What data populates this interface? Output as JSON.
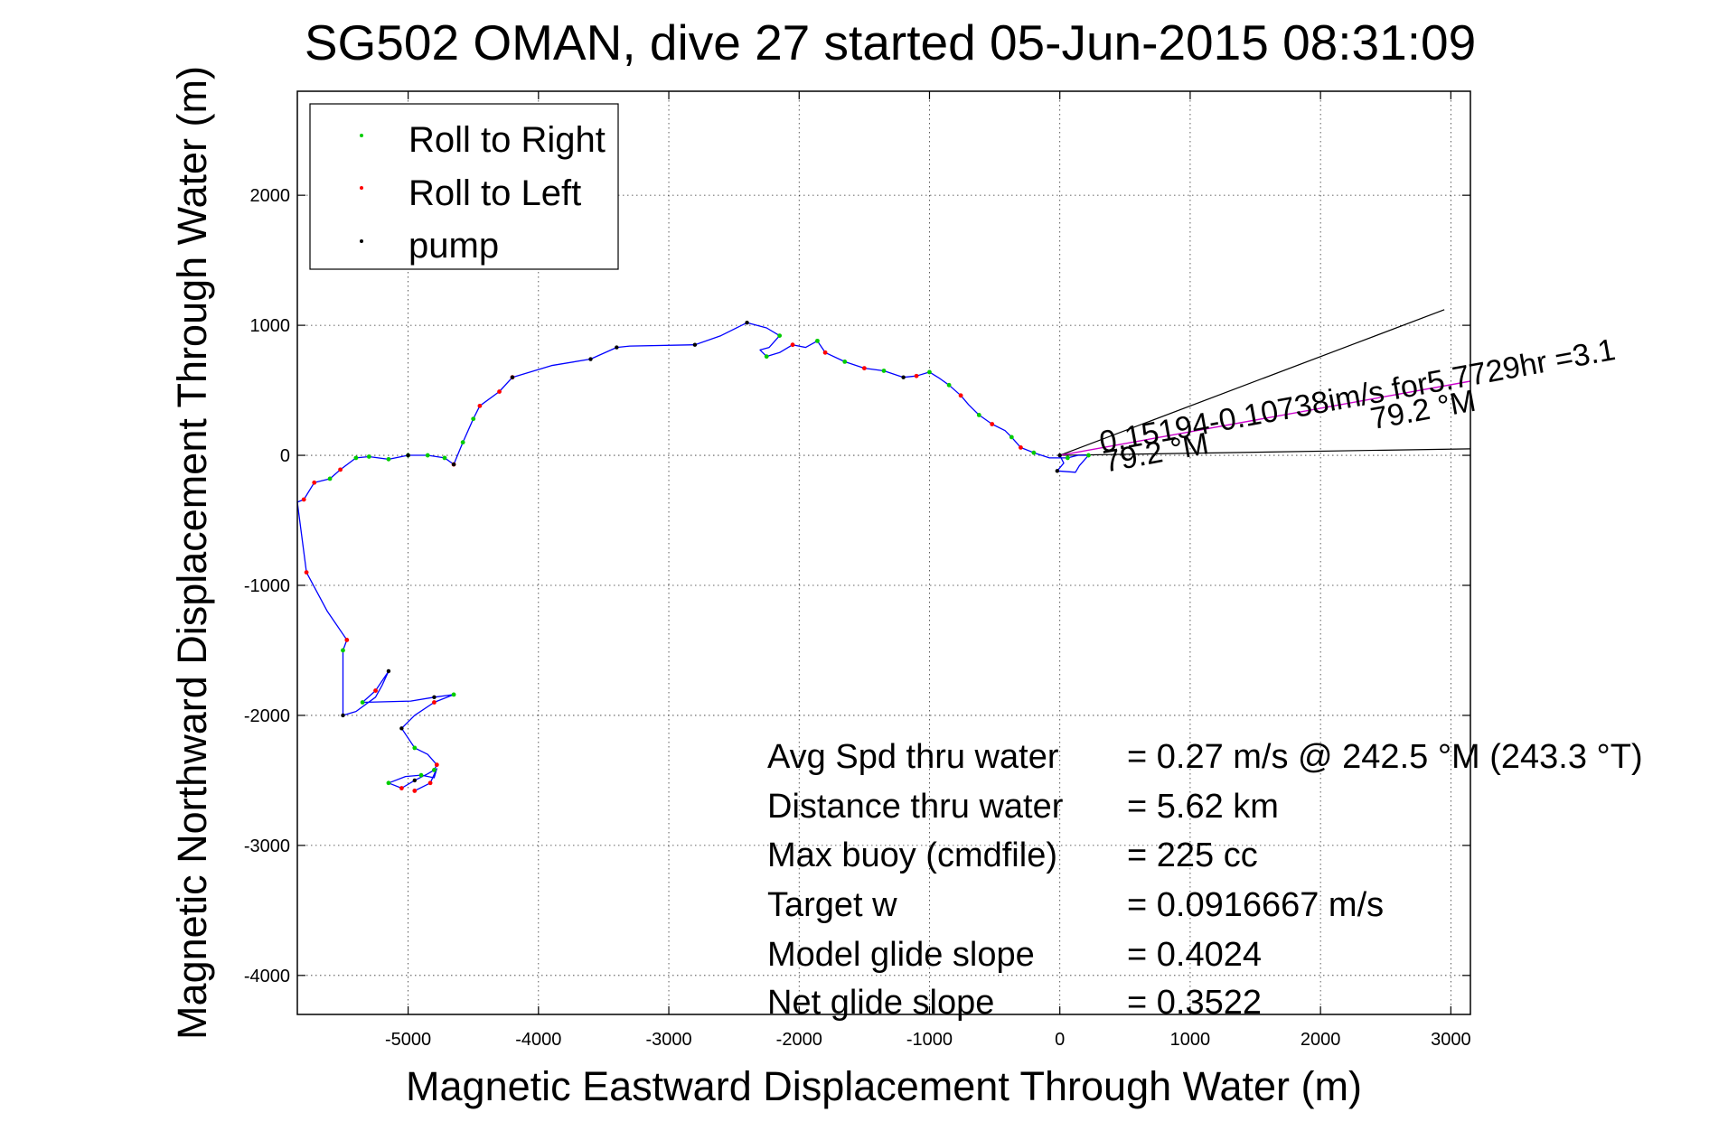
{
  "chart_data": {
    "type": "scatter",
    "title": "SG502 OMAN, dive 27 started 05-Jun-2015 08:31:09",
    "xlabel": "Magnetic Eastward Displacement Through Water (m)",
    "ylabel": "Magnetic Northward Displacement Through Water (m)",
    "xlim": [
      -5850,
      3150
    ],
    "ylim": [
      -4300,
      2800
    ],
    "xticks": [
      -5000,
      -4000,
      -3000,
      -2000,
      -1000,
      0,
      1000,
      2000,
      3000
    ],
    "xtick_labels": [
      "-5000",
      "-4000",
      "-3000",
      "-2000",
      "-1000",
      "0",
      "1000",
      "2000",
      "3000"
    ],
    "yticks": [
      -4000,
      -3000,
      -2000,
      -1000,
      0,
      1000,
      2000
    ],
    "ytick_labels": [
      "-4000",
      "-3000",
      "-2000",
      "-1000",
      "0",
      "1000",
      "2000"
    ],
    "grid": true,
    "legend_position": "top-left",
    "colors": {
      "track": "#0000ff",
      "roll_right": "#00cc00",
      "roll_left": "#ff0000",
      "pump": "#000000",
      "current_line": "#cc00cc",
      "vector_lines": "#000000"
    },
    "legend": [
      {
        "label": "Roll to Right",
        "color": "#00cc00"
      },
      {
        "label": "Roll to Left",
        "color": "#ff0000"
      },
      {
        "label": "pump",
        "color": "#000000"
      }
    ],
    "track": [
      [
        0,
        0
      ],
      [
        30,
        -60
      ],
      [
        -20,
        -120
      ],
      [
        120,
        -130
      ],
      [
        150,
        -80
      ],
      [
        220,
        0
      ],
      [
        140,
        0
      ],
      [
        60,
        -20
      ],
      [
        -80,
        -20
      ],
      [
        -200,
        20
      ],
      [
        -300,
        60
      ],
      [
        -370,
        140
      ],
      [
        -420,
        190
      ],
      [
        -520,
        240
      ],
      [
        -620,
        310
      ],
      [
        -700,
        390
      ],
      [
        -760,
        460
      ],
      [
        -850,
        540
      ],
      [
        -920,
        590
      ],
      [
        -1000,
        640
      ],
      [
        -1100,
        610
      ],
      [
        -1200,
        600
      ],
      [
        -1350,
        650
      ],
      [
        -1500,
        670
      ],
      [
        -1650,
        720
      ],
      [
        -1800,
        790
      ],
      [
        -1860,
        880
      ],
      [
        -1950,
        830
      ],
      [
        -2050,
        850
      ],
      [
        -2150,
        790
      ],
      [
        -2250,
        760
      ],
      [
        -2300,
        810
      ],
      [
        -2230,
        830
      ],
      [
        -2150,
        920
      ],
      [
        -2250,
        980
      ],
      [
        -2400,
        1020
      ],
      [
        -2600,
        920
      ],
      [
        -2800,
        850
      ],
      [
        -3300,
        840
      ],
      [
        -3400,
        830
      ],
      [
        -3600,
        740
      ],
      [
        -3900,
        690
      ],
      [
        -4200,
        600
      ],
      [
        -4300,
        490
      ],
      [
        -4450,
        380
      ],
      [
        -4500,
        280
      ],
      [
        -4580,
        100
      ],
      [
        -4650,
        -70
      ],
      [
        -4720,
        -20
      ],
      [
        -4850,
        0
      ],
      [
        -5000,
        0
      ],
      [
        -5150,
        -30
      ],
      [
        -5300,
        -10
      ],
      [
        -5400,
        -20
      ],
      [
        -5520,
        -110
      ],
      [
        -5600,
        -180
      ],
      [
        -5720,
        -210
      ],
      [
        -5800,
        -340
      ],
      [
        -5850,
        -360
      ],
      [
        -5780,
        -900
      ],
      [
        -5620,
        -1200
      ],
      [
        -5470,
        -1420
      ],
      [
        -5500,
        -1500
      ],
      [
        -5500,
        -2000
      ],
      [
        -5400,
        -1970
      ],
      [
        -5250,
        -1860
      ],
      [
        -5200,
        -1770
      ],
      [
        -5150,
        -1660
      ],
      [
        -5250,
        -1810
      ],
      [
        -5350,
        -1900
      ],
      [
        -4980,
        -1890
      ],
      [
        -4800,
        -1860
      ],
      [
        -4650,
        -1840
      ],
      [
        -4800,
        -1900
      ],
      [
        -4950,
        -2000
      ],
      [
        -5050,
        -2100
      ],
      [
        -4950,
        -2250
      ],
      [
        -4850,
        -2300
      ],
      [
        -4780,
        -2380
      ],
      [
        -4800,
        -2420
      ],
      [
        -4850,
        -2450
      ],
      [
        -4950,
        -2500
      ],
      [
        -5050,
        -2560
      ],
      [
        -5150,
        -2520
      ],
      [
        -5020,
        -2470
      ],
      [
        -4900,
        -2460
      ],
      [
        -4800,
        -2480
      ],
      [
        -4780,
        -2410
      ],
      [
        -4830,
        -2520
      ],
      [
        -4950,
        -2580
      ]
    ],
    "roll_right": [
      [
        220,
        0
      ],
      [
        60,
        -20
      ],
      [
        -200,
        20
      ],
      [
        -370,
        140
      ],
      [
        -620,
        310
      ],
      [
        -850,
        540
      ],
      [
        -1000,
        640
      ],
      [
        -1350,
        650
      ],
      [
        -1650,
        720
      ],
      [
        -1860,
        880
      ],
      [
        -2250,
        760
      ],
      [
        -2150,
        920
      ],
      [
        -4500,
        280
      ],
      [
        -4580,
        100
      ],
      [
        -4720,
        -20
      ],
      [
        -4850,
        0
      ],
      [
        -5000,
        0
      ],
      [
        -5150,
        -30
      ],
      [
        -5300,
        -10
      ],
      [
        -5400,
        -20
      ],
      [
        -5600,
        -180
      ],
      [
        -5500,
        -1500
      ],
      [
        -5350,
        -1900
      ],
      [
        -4650,
        -1840
      ],
      [
        -4950,
        -2250
      ],
      [
        -4800,
        -2420
      ],
      [
        -5150,
        -2520
      ],
      [
        -4900,
        -2460
      ]
    ],
    "roll_left": [
      [
        -300,
        60
      ],
      [
        -520,
        240
      ],
      [
        -760,
        460
      ],
      [
        -1100,
        610
      ],
      [
        -1500,
        670
      ],
      [
        -1800,
        790
      ],
      [
        -2050,
        850
      ],
      [
        -4200,
        600
      ],
      [
        -4300,
        490
      ],
      [
        -4450,
        380
      ],
      [
        -4650,
        -70
      ],
      [
        -5520,
        -110
      ],
      [
        -5720,
        -210
      ],
      [
        -5800,
        -340
      ],
      [
        -5780,
        -900
      ],
      [
        -5470,
        -1420
      ],
      [
        -5250,
        -1810
      ],
      [
        -4800,
        -1900
      ],
      [
        -4780,
        -2380
      ],
      [
        -4830,
        -2520
      ],
      [
        -4950,
        -2580
      ],
      [
        -5050,
        -2560
      ]
    ],
    "pump": [
      [
        0,
        0
      ],
      [
        -20,
        -120
      ],
      [
        -1200,
        600
      ],
      [
        -2400,
        1020
      ],
      [
        -2800,
        850
      ],
      [
        -3400,
        830
      ],
      [
        -3600,
        740
      ],
      [
        -4200,
        600
      ],
      [
        -4650,
        -70
      ],
      [
        -5000,
        0
      ],
      [
        -5150,
        -1660
      ],
      [
        -4800,
        -1860
      ],
      [
        -4950,
        -2500
      ],
      [
        -5050,
        -2100
      ],
      [
        -5500,
        -2000
      ]
    ],
    "vector_lines": [
      {
        "from": [
          0,
          0
        ],
        "to": [
          2950,
          1120
        ]
      },
      {
        "from": [
          0,
          0
        ],
        "to": [
          3150,
          50
        ]
      }
    ],
    "current_line": {
      "from": [
        0,
        0
      ],
      "to": [
        3150,
        570
      ]
    },
    "annotations": [
      {
        "text": "0.15194-0.10738im/s for5.7729hr =3.1",
        "anchor": [
          320,
          20
        ],
        "angle": -10.3
      },
      {
        "text": "79.2 °M",
        "anchor": [
          2400,
          200
        ],
        "angle": -10.3
      },
      {
        "text": "79.2 °M",
        "anchor": [
          350,
          -130
        ],
        "angle": -10.3
      }
    ],
    "stats": [
      {
        "label": "Avg Spd thru water",
        "value": "=  0.27 m/s @ 242.5 °M (243.3 °T)"
      },
      {
        "label": "Distance thru water",
        "value": "=  5.62 km"
      },
      {
        "label": "Max buoy (cmdfile)",
        "value": "= 225 cc"
      },
      {
        "label": "Target w",
        "value": "= 0.0916667 m/s"
      },
      {
        "label": "Model glide slope",
        "value": "= 0.4024"
      },
      {
        "label": "Net glide slope",
        "value": "= 0.3522"
      }
    ]
  }
}
